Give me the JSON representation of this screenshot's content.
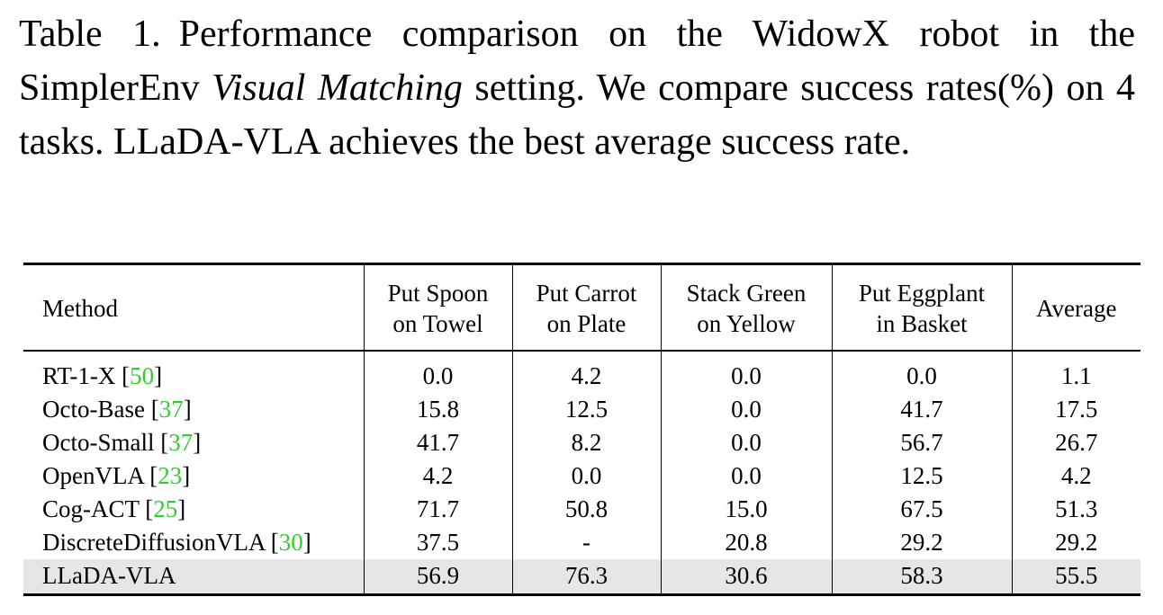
{
  "caption": {
    "label": "Table 1.",
    "text_before": "Performance comparison on the WidowX robot in the SimplerEnv ",
    "text_italic": "Visual Matching",
    "text_after": " setting. We compare success rates(%) on 4 tasks. LLaDA-VLA achieves the best average success rate."
  },
  "table": {
    "headers": [
      {
        "line1": "Method",
        "line2": ""
      },
      {
        "line1": "Put Spoon",
        "line2": "on Towel"
      },
      {
        "line1": "Put Carrot",
        "line2": "on Plate"
      },
      {
        "line1": "Stack Green",
        "line2": "on Yellow"
      },
      {
        "line1": "Put Eggplant",
        "line2": "in Basket"
      },
      {
        "line1": "Average",
        "line2": ""
      }
    ],
    "rows": [
      {
        "method": "RT-1-X",
        "ref": "50",
        "values": [
          "0.0",
          "4.2",
          "0.0",
          "0.0",
          "1.1"
        ]
      },
      {
        "method": "Octo-Base",
        "ref": "37",
        "values": [
          "15.8",
          "12.5",
          "0.0",
          "41.7",
          "17.5"
        ]
      },
      {
        "method": "Octo-Small",
        "ref": "37",
        "values": [
          "41.7",
          "8.2",
          "0.0",
          "56.7",
          "26.7"
        ]
      },
      {
        "method": "OpenVLA",
        "ref": "23",
        "values": [
          "4.2",
          "0.0",
          "0.0",
          "12.5",
          "4.2"
        ]
      },
      {
        "method": "Cog-ACT",
        "ref": "25",
        "values": [
          "71.7",
          "50.8",
          "15.0",
          "67.5",
          "51.3"
        ]
      },
      {
        "method": "DiscreteDiffusionVLA",
        "ref": "30",
        "values": [
          "37.5",
          "-",
          "20.8",
          "29.2",
          "29.2"
        ]
      },
      {
        "method": "LLaDA-VLA",
        "ref": "",
        "values": [
          "56.9",
          "76.3",
          "30.6",
          "58.3",
          "55.5"
        ]
      }
    ],
    "highlight_color": "#e6e6e6",
    "reference_color": "#33cc33"
  }
}
